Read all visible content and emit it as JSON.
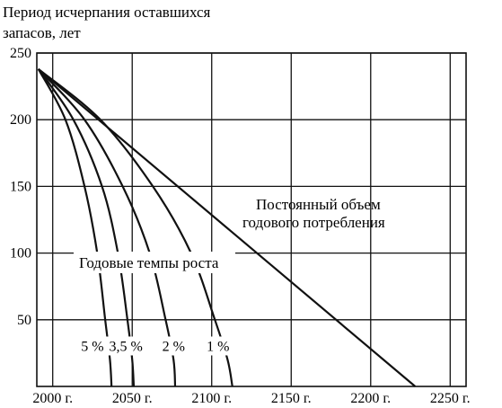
{
  "chart_data": {
    "type": "line",
    "ylabel_lines": [
      "Период исчерпания оставшихся",
      "запасов, лет"
    ],
    "x_ticks": [
      2000,
      2050,
      2100,
      2150,
      2200,
      2250
    ],
    "x_tick_labels": [
      "2000 г.",
      "2050 г.",
      "2100 г.",
      "2150 г.",
      "2200 г.",
      "2250 г."
    ],
    "y_ticks": [
      50,
      100,
      150,
      200,
      250
    ],
    "y_tick_labels": [
      "50",
      "100",
      "150",
      "200",
      "250"
    ],
    "xlim": [
      1990,
      2260
    ],
    "ylim": [
      0,
      250
    ],
    "grid": true,
    "annotations": {
      "constant_line_1": "Постоянный объем",
      "constant_line_2": "годового потребления",
      "growth_rates": "Годовые темпы роста"
    },
    "series": [
      {
        "name": "Постоянный объем годового потребления",
        "x": [
          1991,
          2228
        ],
        "y": [
          238,
          0
        ],
        "label_x": null,
        "label_y": null
      },
      {
        "name": "5 %",
        "x": [
          1991,
          2008,
          2020,
          2028,
          2033,
          2036,
          2037
        ],
        "y": [
          238,
          200,
          150,
          100,
          50,
          20,
          0
        ],
        "label": "5 %",
        "label_x": 2025,
        "label_y": 30
      },
      {
        "name": "3,5 %",
        "x": [
          1991,
          2013,
          2031,
          2041,
          2047,
          2050,
          2051
        ],
        "y": [
          238,
          200,
          150,
          100,
          50,
          20,
          0
        ],
        "label": "3,5 %",
        "label_x": 2046,
        "label_y": 30
      },
      {
        "name": "2 %",
        "x": [
          1991,
          2020,
          2044,
          2061,
          2071,
          2076,
          2077
        ],
        "y": [
          238,
          200,
          150,
          100,
          50,
          20,
          0
        ],
        "label": "2 %",
        "label_x": 2076,
        "label_y": 30
      },
      {
        "name": "1 %",
        "x": [
          1991,
          2030,
          2063,
          2087,
          2102,
          2110,
          2113
        ],
        "y": [
          238,
          200,
          150,
          100,
          50,
          20,
          0
        ],
        "label": "1 %",
        "label_x": 2104,
        "label_y": 30
      }
    ]
  }
}
